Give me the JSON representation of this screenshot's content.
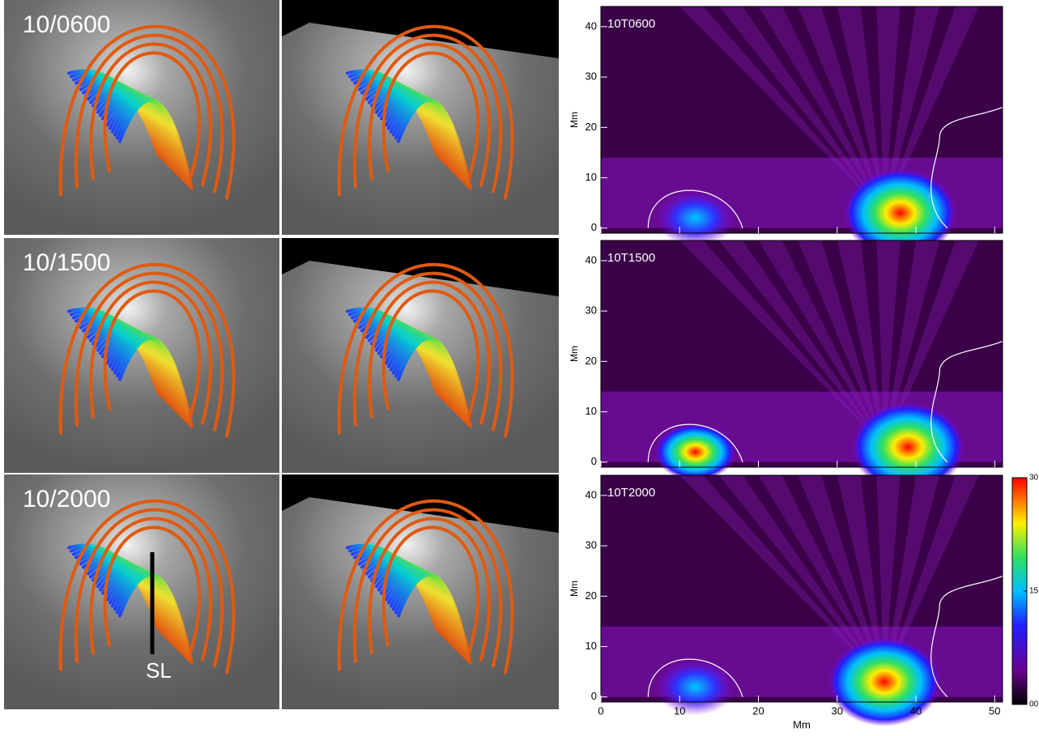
{
  "left_panels": [
    {
      "label": "10/0600"
    },
    {
      "label": "10/1500"
    },
    {
      "label": "10/2000",
      "marker": "SL"
    }
  ],
  "right_panels": {
    "panels": [
      {
        "label": "10T0600"
      },
      {
        "label": "10T1500"
      },
      {
        "label": "10T2000"
      }
    ],
    "xlabel": "Mm",
    "ylabel": "Mm",
    "xlim": [
      0,
      51
    ],
    "ylim": [
      -1,
      44
    ],
    "xticks": [
      0,
      10,
      20,
      30,
      40,
      50
    ],
    "yticks": [
      0,
      10,
      20,
      30,
      40
    ]
  },
  "colorbar": {
    "lim": [
      0,
      30
    ],
    "ticks": [
      {
        "value": 0,
        "label": "00"
      },
      15,
      30
    ]
  }
}
